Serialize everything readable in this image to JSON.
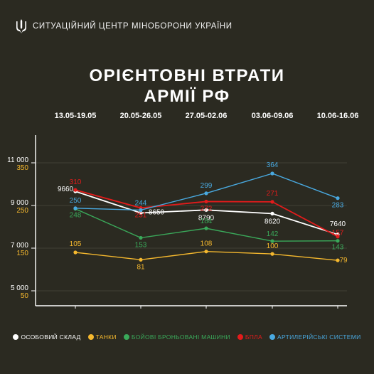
{
  "header": {
    "title": "СИТУАЦІЙНИЙ ЦЕНТР МІНОБОРОНИ УКРАЇНИ",
    "logo_icon": "trident-icon"
  },
  "chart_data": {
    "type": "line",
    "title_lines": [
      "ОРІЄНТОВНІ ВТРАТИ",
      "АРМІЇ РФ"
    ],
    "categories": [
      "13.05-19.05",
      "20.05-26.05",
      "27.05-02.06",
      "03.06-09.06",
      "10.06-16.06"
    ],
    "left_axis": {
      "ticks": [
        "11 000",
        "9 000",
        "7 000",
        "5 000"
      ],
      "tick_values": [
        11000,
        9000,
        7000,
        5000
      ],
      "ylim": [
        4300,
        12300
      ],
      "color": "#ffffff"
    },
    "right_axis": {
      "ticks": [
        "350",
        "250",
        "150",
        "50"
      ],
      "tick_values": [
        350,
        250,
        150,
        50
      ],
      "ylim": [
        -70,
        490
      ],
      "color": "#f5b82e"
    },
    "grid": true,
    "legend_position": "bottom",
    "series": [
      {
        "name": "ОСОБОВИЙ СКЛАД",
        "axis": "left",
        "color": "#ffffff",
        "values": [
          9660,
          8650,
          8790,
          8620,
          7640
        ],
        "labels": [
          "9660",
          "8650",
          "8790",
          "8620",
          "7640"
        ]
      },
      {
        "name": "ТАНКИ",
        "axis": "right",
        "color": "#f5b82e",
        "values": [
          105,
          81,
          108,
          100,
          79
        ],
        "labels": [
          "105",
          "81",
          "108",
          "100",
          "79"
        ]
      },
      {
        "name": "БОЙОВІ БРОНЬОВАНІ МАШИНИ",
        "axis": "right",
        "color": "#3aa95a",
        "values": [
          248,
          153,
          184,
          142,
          143
        ],
        "labels": [
          "248",
          "153",
          "184",
          "142",
          "143"
        ]
      },
      {
        "name": "БПЛА",
        "axis": "right",
        "color": "#e31b1b",
        "values": [
          310,
          251,
          272,
          271,
          157
        ],
        "labels": [
          "310",
          "251",
          "272",
          "271",
          "157"
        ]
      },
      {
        "name": "АРТИЛЕРІЙСЬКІ СИСТЕМИ",
        "axis": "right",
        "color": "#49a9e0",
        "values": [
          250,
          244,
          299,
          364,
          283
        ],
        "labels": [
          "250",
          "244",
          "299",
          "364",
          "283"
        ]
      }
    ]
  }
}
